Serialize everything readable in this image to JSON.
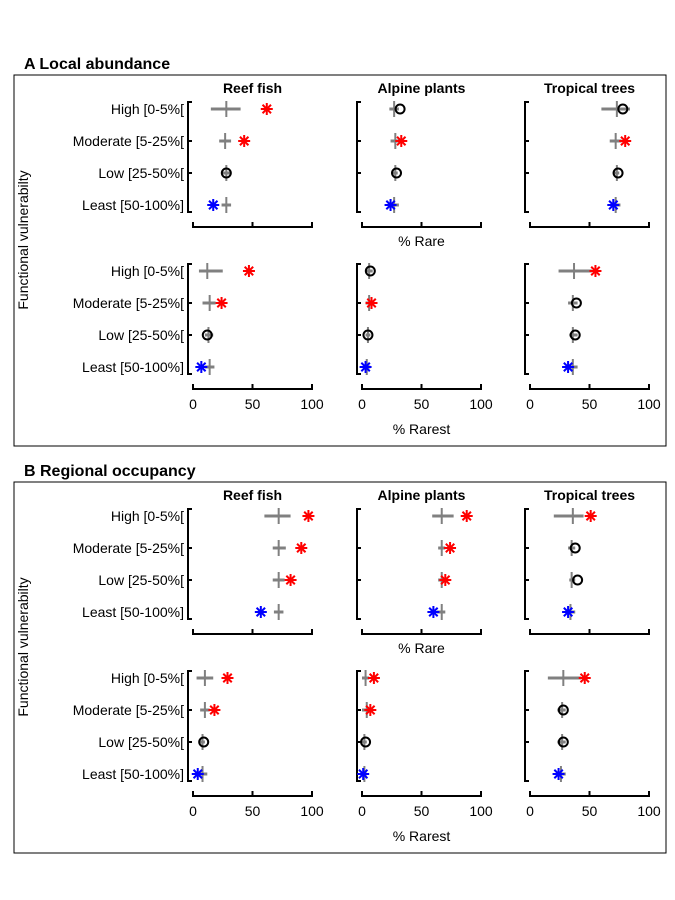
{
  "chart_data": {
    "type": "scatter",
    "ylabel": "Functional vulnerabilty",
    "categories": [
      "High [0-5%[",
      "Moderate [5-25%[",
      "Low [25-50%[",
      "Least [50-100%]"
    ],
    "xlim": [
      0,
      100
    ],
    "xticks": [
      "0",
      "50",
      "100"
    ],
    "colors": {
      "higher": "#ff0000",
      "lower": "#0000ff",
      "null": "#808080",
      "ns_fill": "#999999"
    },
    "point_format": "[observed, null_mean, null_low, null_high, status]",
    "panels": [
      {
        "title": "A Local abundance",
        "taxa": [
          "Reef fish",
          "Alpine plants",
          "Tropical trees"
        ],
        "metrics": [
          {
            "xlabel": "% Rare",
            "data": [
              [
                [
                  62,
                  28,
                  15,
                  40,
                  "higher"
                ],
                [
                  43,
                  27,
                  22,
                  32,
                  "higher"
                ],
                [
                  28,
                  28,
                  24,
                  31,
                  "ns"
                ],
                [
                  17,
                  28,
                  24,
                  32,
                  "lower"
                ]
              ],
              [
                [
                  32,
                  27,
                  23,
                  31,
                  "ns"
                ],
                [
                  33,
                  28,
                  24,
                  32,
                  "higher"
                ],
                [
                  29,
                  28,
                  25,
                  30,
                  "ns"
                ],
                [
                  24,
                  27,
                  23,
                  31,
                  "lower"
                ]
              ],
              [
                [
                  78,
                  73,
                  60,
                  84,
                  "ns"
                ],
                [
                  80,
                  72,
                  67,
                  77,
                  "higher"
                ],
                [
                  74,
                  73,
                  70,
                  75,
                  "ns"
                ],
                [
                  70,
                  72,
                  68,
                  76,
                  "lower"
                ]
              ]
            ]
          },
          {
            "xlabel": "% Rarest",
            "data": [
              [
                [
                  47,
                  12,
                  5,
                  25,
                  "higher"
                ],
                [
                  24,
                  14,
                  8,
                  19,
                  "higher"
                ],
                [
                  12,
                  13,
                  10,
                  17,
                  "ns"
                ],
                [
                  7,
                  14,
                  10,
                  18,
                  "lower"
                ]
              ],
              [
                [
                  7,
                  6,
                  3,
                  9,
                  "ns"
                ],
                [
                  8,
                  6,
                  3,
                  10,
                  "higher"
                ],
                [
                  5,
                  5,
                  3,
                  7,
                  "ns"
                ],
                [
                  3,
                  4,
                  2,
                  7,
                  "lower"
                ]
              ],
              [
                [
                  55,
                  37,
                  24,
                  52,
                  "higher"
                ],
                [
                  39,
                  36,
                  32,
                  40,
                  "ns"
                ],
                [
                  38,
                  36,
                  33,
                  40,
                  "ns"
                ],
                [
                  32,
                  36,
                  31,
                  40,
                  "lower"
                ]
              ]
            ]
          }
        ]
      },
      {
        "title": "B Regional occupancy",
        "taxa": [
          "Reef fish",
          "Alpine plants",
          "Tropical trees"
        ],
        "metrics": [
          {
            "xlabel": "% Rare",
            "data": [
              [
                [
                  97,
                  72,
                  60,
                  82,
                  "higher"
                ],
                [
                  91,
                  72,
                  67,
                  78,
                  "higher"
                ],
                [
                  82,
                  72,
                  67,
                  77,
                  "higher"
                ],
                [
                  57,
                  72,
                  68,
                  76,
                  "lower"
                ]
              ],
              [
                [
                  88,
                  67,
                  59,
                  77,
                  "higher"
                ],
                [
                  74,
                  67,
                  64,
                  70,
                  "higher"
                ],
                [
                  70,
                  67,
                  64,
                  70,
                  "higher"
                ],
                [
                  60,
                  67,
                  63,
                  70,
                  "lower"
                ]
              ],
              [
                [
                  51,
                  36,
                  20,
                  45,
                  "higher"
                ],
                [
                  38,
                  35,
                  32,
                  38,
                  "ns"
                ],
                [
                  40,
                  35,
                  33,
                  38,
                  "ns"
                ],
                [
                  32,
                  34,
                  30,
                  38,
                  "lower"
                ]
              ]
            ]
          },
          {
            "xlabel": "% Rarest",
            "data": [
              [
                [
                  29,
                  10,
                  3,
                  17,
                  "higher"
                ],
                [
                  18,
                  10,
                  6,
                  14,
                  "higher"
                ],
                [
                  9,
                  8,
                  6,
                  10,
                  "ns"
                ],
                [
                  4,
                  8,
                  4,
                  12,
                  "lower"
                ]
              ],
              [
                [
                  10,
                  3,
                  0,
                  6,
                  "higher"
                ],
                [
                  7,
                  4,
                  0,
                  7,
                  "higher"
                ],
                [
                  3,
                  2,
                  0,
                  4,
                  "ns"
                ],
                [
                  1,
                  2,
                  0,
                  4,
                  "lower"
                ]
              ],
              [
                [
                  46,
                  28,
                  15,
                  43,
                  "higher"
                ],
                [
                  28,
                  27,
                  23,
                  30,
                  "ns"
                ],
                [
                  28,
                  27,
                  23,
                  30,
                  "ns"
                ],
                [
                  24,
                  26,
                  22,
                  30,
                  "lower"
                ]
              ]
            ]
          }
        ]
      }
    ]
  }
}
